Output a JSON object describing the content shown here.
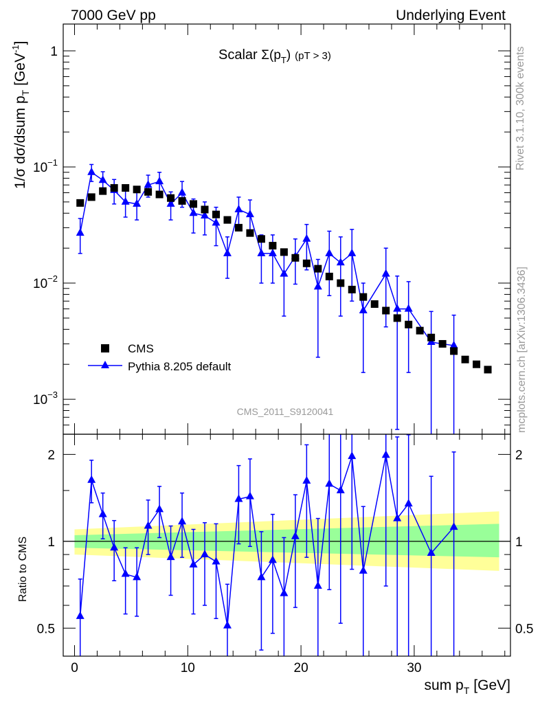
{
  "header": {
    "left": "7000 GeV pp",
    "right": "Underlying Event"
  },
  "side": {
    "rivet": "Rivet 3.1.10,  300k events",
    "mcplots": "mcplots.cern.ch [arXiv:1306.3436]"
  },
  "chart_data": {
    "type": "scatter",
    "title_main": "Scalar ",
    "title_sigma": "Σ(p",
    "title_sub": "T",
    "title_close": ")",
    "title_cut": "(pT >  3)",
    "watermark": "CMS_2011_S9120041",
    "x_label": "sum p",
    "x_label_sub": "T",
    "x_label_unit": "[GeV]",
    "y_label_main": "1/σ dσ/dsum p",
    "y_label_sub": "T",
    "y_label_unit": "[GeV",
    "y_label_sup": "-1",
    "y_label_close": "]",
    "ratio_label": "Ratio to CMS",
    "xlim": [
      -1,
      38.5
    ],
    "ylim": [
      0.0005,
      1.7
    ],
    "ratio_ylim": [
      0.4,
      2.35
    ],
    "yscale": "log",
    "x_ticks": [
      0,
      10,
      20,
      30
    ],
    "main_y_ticks": [
      {
        "value": 1,
        "base": "1",
        "exp": ""
      },
      {
        "value": 0.1,
        "base": "10",
        "exp": "−1"
      },
      {
        "value": 0.01,
        "base": "10",
        "exp": "−2"
      },
      {
        "value": 0.001,
        "base": "10",
        "exp": "−3"
      }
    ],
    "ratio_y_ticks": [
      {
        "value": 2,
        "label": "2"
      },
      {
        "value": 1,
        "label": "1"
      },
      {
        "value": 0.5,
        "label": "0.5"
      }
    ],
    "legend": [
      {
        "name": "CMS",
        "marker": "square",
        "color": "#000000"
      },
      {
        "name": "Pythia 8.205 default",
        "marker": "triangle",
        "color": "#0000ff"
      }
    ],
    "series": [
      {
        "name": "CMS",
        "x": [
          0.5,
          1.5,
          2.5,
          3.5,
          4.5,
          5.5,
          6.5,
          7.5,
          8.5,
          9.5,
          10.5,
          11.5,
          12.5,
          13.5,
          14.5,
          15.5,
          16.5,
          17.5,
          18.5,
          19.5,
          20.5,
          21.5,
          22.5,
          23.5,
          24.5,
          25.5,
          26.5,
          27.5,
          28.5,
          29.5,
          30.5,
          31.5,
          32.5,
          33.5,
          34.5,
          35.5,
          36.5
        ],
        "y": [
          0.049,
          0.055,
          0.062,
          0.066,
          0.066,
          0.064,
          0.061,
          0.058,
          0.054,
          0.051,
          0.048,
          0.043,
          0.039,
          0.035,
          0.03,
          0.027,
          0.024,
          0.021,
          0.0185,
          0.0165,
          0.0148,
          0.0133,
          0.0114,
          0.01,
          0.0088,
          0.0076,
          0.0066,
          0.0058,
          0.005,
          0.0044,
          0.0039,
          0.0034,
          0.003,
          0.0026,
          0.0022,
          0.002,
          0.0018
        ]
      },
      {
        "name": "Pythia 8.205 default",
        "x": [
          0.5,
          1.5,
          2.5,
          3.5,
          4.5,
          5.5,
          6.5,
          7.5,
          8.5,
          9.5,
          10.5,
          11.5,
          12.5,
          13.5,
          14.5,
          15.5,
          16.5,
          17.5,
          18.5,
          19.5,
          20.5,
          21.5,
          22.5,
          23.5,
          24.5,
          25.5,
          27.5,
          28.5,
          29.5,
          31.5,
          33.5
        ],
        "y": [
          0.027,
          0.09,
          0.077,
          0.063,
          0.05,
          0.048,
          0.07,
          0.075,
          0.048,
          0.06,
          0.04,
          0.038,
          0.033,
          0.018,
          0.043,
          0.039,
          0.018,
          0.018,
          0.012,
          0.017,
          0.024,
          0.0093,
          0.018,
          0.015,
          0.018,
          0.0058,
          0.012,
          0.006,
          0.006,
          0.0031,
          0.0029
        ],
        "y_lo": [
          0.018,
          0.075,
          0.063,
          0.048,
          0.037,
          0.035,
          0.055,
          0.06,
          0.035,
          0.045,
          0.027,
          0.026,
          0.021,
          0.011,
          0.03,
          0.026,
          0.01,
          0.01,
          0.0052,
          0.0098,
          0.013,
          0.0023,
          0.0078,
          0.0052,
          0.007,
          0.0017,
          0.0042,
          0.00055,
          0.0017,
          0.00045,
          0.00045
        ],
        "y_hi": [
          0.036,
          0.105,
          0.091,
          0.078,
          0.063,
          0.061,
          0.085,
          0.09,
          0.061,
          0.075,
          0.053,
          0.05,
          0.045,
          0.025,
          0.055,
          0.052,
          0.026,
          0.026,
          0.019,
          0.024,
          0.032,
          0.016,
          0.028,
          0.025,
          0.029,
          0.01,
          0.02,
          0.0115,
          0.0103,
          0.0057,
          0.0053
        ]
      }
    ],
    "ratio": {
      "x": [
        0.5,
        1.5,
        2.5,
        3.5,
        4.5,
        5.5,
        6.5,
        7.5,
        8.5,
        9.5,
        10.5,
        11.5,
        12.5,
        13.5,
        14.5,
        15.5,
        16.5,
        17.5,
        18.5,
        19.5,
        20.5,
        21.5,
        22.5,
        23.5,
        24.5,
        25.5,
        27.5,
        28.5,
        29.5,
        31.5,
        33.5
      ],
      "y": [
        0.55,
        1.63,
        1.24,
        0.95,
        0.77,
        0.75,
        1.13,
        1.29,
        0.88,
        1.17,
        0.83,
        0.9,
        0.85,
        0.51,
        1.4,
        1.43,
        0.75,
        0.86,
        0.66,
        1.04,
        1.62,
        0.7,
        1.58,
        1.5,
        1.97,
        0.79,
        1.99,
        1.2,
        1.35,
        0.91,
        1.12
      ],
      "y_lo": [
        0.37,
        1.36,
        1.02,
        0.73,
        0.56,
        0.55,
        0.9,
        1.03,
        0.65,
        0.88,
        0.56,
        0.6,
        0.54,
        0.31,
        0.98,
        0.96,
        0.42,
        0.48,
        0.28,
        0.59,
        0.88,
        0.17,
        0.68,
        0.52,
        0.8,
        0.22,
        0.7,
        0.11,
        0.39,
        0.13,
        0.17
      ],
      "y_hi": [
        0.74,
        1.91,
        1.47,
        1.18,
        0.95,
        0.95,
        1.39,
        1.55,
        1.13,
        1.47,
        1.1,
        1.16,
        1.15,
        0.71,
        1.83,
        1.93,
        1.08,
        1.24,
        1.03,
        1.45,
        2.16,
        1.2,
        2.46,
        2.5,
        3.3,
        1.32,
        3.45,
        2.3,
        2.34,
        1.68,
        2.04
      ],
      "band_x": [
        0,
        37.5
      ],
      "yellow_lo": [
        0.9,
        0.79
      ],
      "yellow_hi": [
        1.1,
        1.27
      ],
      "green_lo": [
        0.95,
        0.88
      ],
      "green_hi": [
        1.05,
        1.15
      ]
    }
  }
}
